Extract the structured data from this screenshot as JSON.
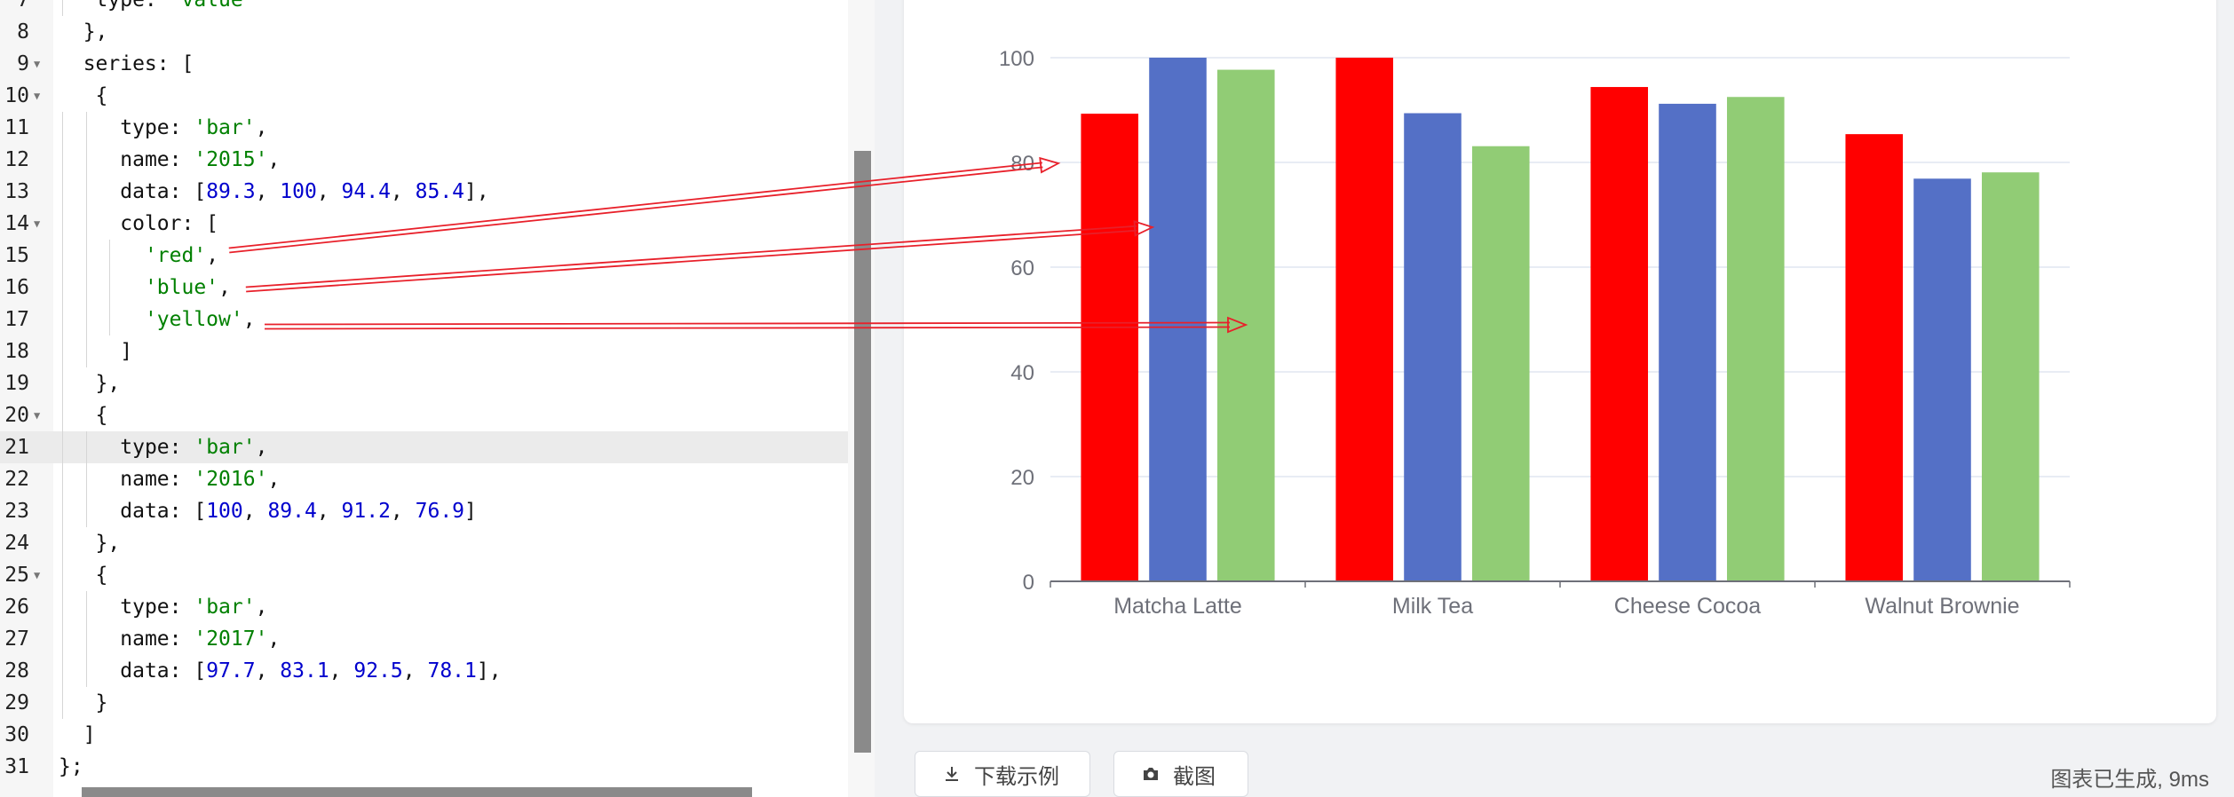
{
  "editor": {
    "lines": [
      {
        "n": "7",
        "fold": false,
        "indent": 1,
        "tokens": [
          {
            "t": "type: ",
            "c": "key"
          },
          {
            "t": "'value'",
            "c": "str"
          }
        ]
      },
      {
        "n": "8",
        "fold": false,
        "indent": 0,
        "tokens": [
          {
            "t": "  },",
            "c": "key"
          }
        ]
      },
      {
        "n": "9",
        "fold": true,
        "indent": 0,
        "tokens": [
          {
            "t": "  series: [",
            "c": "key"
          }
        ]
      },
      {
        "n": "10",
        "fold": true,
        "indent": 0,
        "tokens": [
          {
            "t": "   {",
            "c": "key"
          }
        ]
      },
      {
        "n": "11",
        "fold": false,
        "indent": 2,
        "tokens": [
          {
            "t": "type: ",
            "c": "key"
          },
          {
            "t": "'bar'",
            "c": "str"
          },
          {
            "t": ",",
            "c": "key"
          }
        ]
      },
      {
        "n": "12",
        "fold": false,
        "indent": 2,
        "tokens": [
          {
            "t": "name: ",
            "c": "key"
          },
          {
            "t": "'2015'",
            "c": "str"
          },
          {
            "t": ",",
            "c": "key"
          }
        ]
      },
      {
        "n": "13",
        "fold": false,
        "indent": 2,
        "tokens": [
          {
            "t": "data: [",
            "c": "key"
          },
          {
            "t": "89.3",
            "c": "num"
          },
          {
            "t": ", ",
            "c": "key"
          },
          {
            "t": "100",
            "c": "num"
          },
          {
            "t": ", ",
            "c": "key"
          },
          {
            "t": "94.4",
            "c": "num"
          },
          {
            "t": ", ",
            "c": "key"
          },
          {
            "t": "85.4",
            "c": "num"
          },
          {
            "t": "],",
            "c": "key"
          }
        ]
      },
      {
        "n": "14",
        "fold": true,
        "indent": 2,
        "tokens": [
          {
            "t": "color: [",
            "c": "key"
          }
        ]
      },
      {
        "n": "15",
        "fold": false,
        "indent": 3,
        "tokens": [
          {
            "t": "'red'",
            "c": "str"
          },
          {
            "t": ",",
            "c": "key"
          }
        ]
      },
      {
        "n": "16",
        "fold": false,
        "indent": 3,
        "tokens": [
          {
            "t": "'blue'",
            "c": "str"
          },
          {
            "t": ",",
            "c": "key"
          }
        ]
      },
      {
        "n": "17",
        "fold": false,
        "indent": 3,
        "tokens": [
          {
            "t": "'yellow'",
            "c": "str"
          },
          {
            "t": ",",
            "c": "key"
          }
        ]
      },
      {
        "n": "18",
        "fold": false,
        "indent": 2,
        "tokens": [
          {
            "t": "]",
            "c": "key"
          }
        ]
      },
      {
        "n": "19",
        "fold": false,
        "indent": 1,
        "tokens": [
          {
            "t": "},",
            "c": "key"
          }
        ]
      },
      {
        "n": "20",
        "fold": true,
        "indent": 1,
        "tokens": [
          {
            "t": "{",
            "c": "key"
          }
        ]
      },
      {
        "n": "21",
        "fold": false,
        "indent": 2,
        "active": true,
        "tokens": [
          {
            "t": "type: ",
            "c": "key"
          },
          {
            "t": "'bar'",
            "c": "str"
          },
          {
            "t": ",",
            "c": "key"
          }
        ]
      },
      {
        "n": "22",
        "fold": false,
        "indent": 2,
        "tokens": [
          {
            "t": "name: ",
            "c": "key"
          },
          {
            "t": "'2016'",
            "c": "str"
          },
          {
            "t": ",",
            "c": "key"
          }
        ]
      },
      {
        "n": "23",
        "fold": false,
        "indent": 2,
        "tokens": [
          {
            "t": "data: [",
            "c": "key"
          },
          {
            "t": "100",
            "c": "num"
          },
          {
            "t": ", ",
            "c": "key"
          },
          {
            "t": "89.4",
            "c": "num"
          },
          {
            "t": ", ",
            "c": "key"
          },
          {
            "t": "91.2",
            "c": "num"
          },
          {
            "t": ", ",
            "c": "key"
          },
          {
            "t": "76.9",
            "c": "num"
          },
          {
            "t": "]",
            "c": "key"
          }
        ]
      },
      {
        "n": "24",
        "fold": false,
        "indent": 1,
        "tokens": [
          {
            "t": "},",
            "c": "key"
          }
        ]
      },
      {
        "n": "25",
        "fold": true,
        "indent": 1,
        "tokens": [
          {
            "t": "{",
            "c": "key"
          }
        ]
      },
      {
        "n": "26",
        "fold": false,
        "indent": 2,
        "tokens": [
          {
            "t": "type: ",
            "c": "key"
          },
          {
            "t": "'bar'",
            "c": "str"
          },
          {
            "t": ",",
            "c": "key"
          }
        ]
      },
      {
        "n": "27",
        "fold": false,
        "indent": 2,
        "tokens": [
          {
            "t": "name: ",
            "c": "key"
          },
          {
            "t": "'2017'",
            "c": "str"
          },
          {
            "t": ",",
            "c": "key"
          }
        ]
      },
      {
        "n": "28",
        "fold": false,
        "indent": 2,
        "tokens": [
          {
            "t": "data: [",
            "c": "key"
          },
          {
            "t": "97.7",
            "c": "num"
          },
          {
            "t": ", ",
            "c": "key"
          },
          {
            "t": "83.1",
            "c": "num"
          },
          {
            "t": ", ",
            "c": "key"
          },
          {
            "t": "92.5",
            "c": "num"
          },
          {
            "t": ", ",
            "c": "key"
          },
          {
            "t": "78.1",
            "c": "num"
          },
          {
            "t": "],",
            "c": "key"
          }
        ]
      },
      {
        "n": "29",
        "fold": false,
        "indent": 1,
        "tokens": [
          {
            "t": "}",
            "c": "key"
          }
        ]
      },
      {
        "n": "30",
        "fold": false,
        "indent": 0,
        "tokens": [
          {
            "t": "  ]",
            "c": "key"
          }
        ]
      },
      {
        "n": "31",
        "fold": false,
        "indent": 0,
        "tokens": [
          {
            "t": "};",
            "c": "key"
          }
        ]
      }
    ]
  },
  "chart_data": {
    "type": "bar",
    "categories": [
      "Matcha Latte",
      "Milk Tea",
      "Cheese Cocoa",
      "Walnut Brownie"
    ],
    "series": [
      {
        "values": [
          89.3,
          100,
          94.4,
          85.4
        ],
        "colors": [
          "#ff0000"
        ]
      },
      {
        "values": [
          100,
          89.4,
          91.2,
          76.9
        ],
        "colors": [
          "#5470c6"
        ]
      },
      {
        "values": [
          97.7,
          83.1,
          92.5,
          78.1
        ],
        "colors": [
          "#91cc75"
        ]
      }
    ],
    "yticks": [
      "0",
      "20",
      "40",
      "60",
      "80",
      "100"
    ],
    "ylim": [
      0,
      100
    ],
    "grid": true,
    "legend": false
  },
  "annotations": {
    "arrow_color": "#e8202a"
  },
  "toolbar": {
    "download_label": "下载示例",
    "screenshot_label": "截图",
    "status": "图表已生成, 9ms"
  }
}
